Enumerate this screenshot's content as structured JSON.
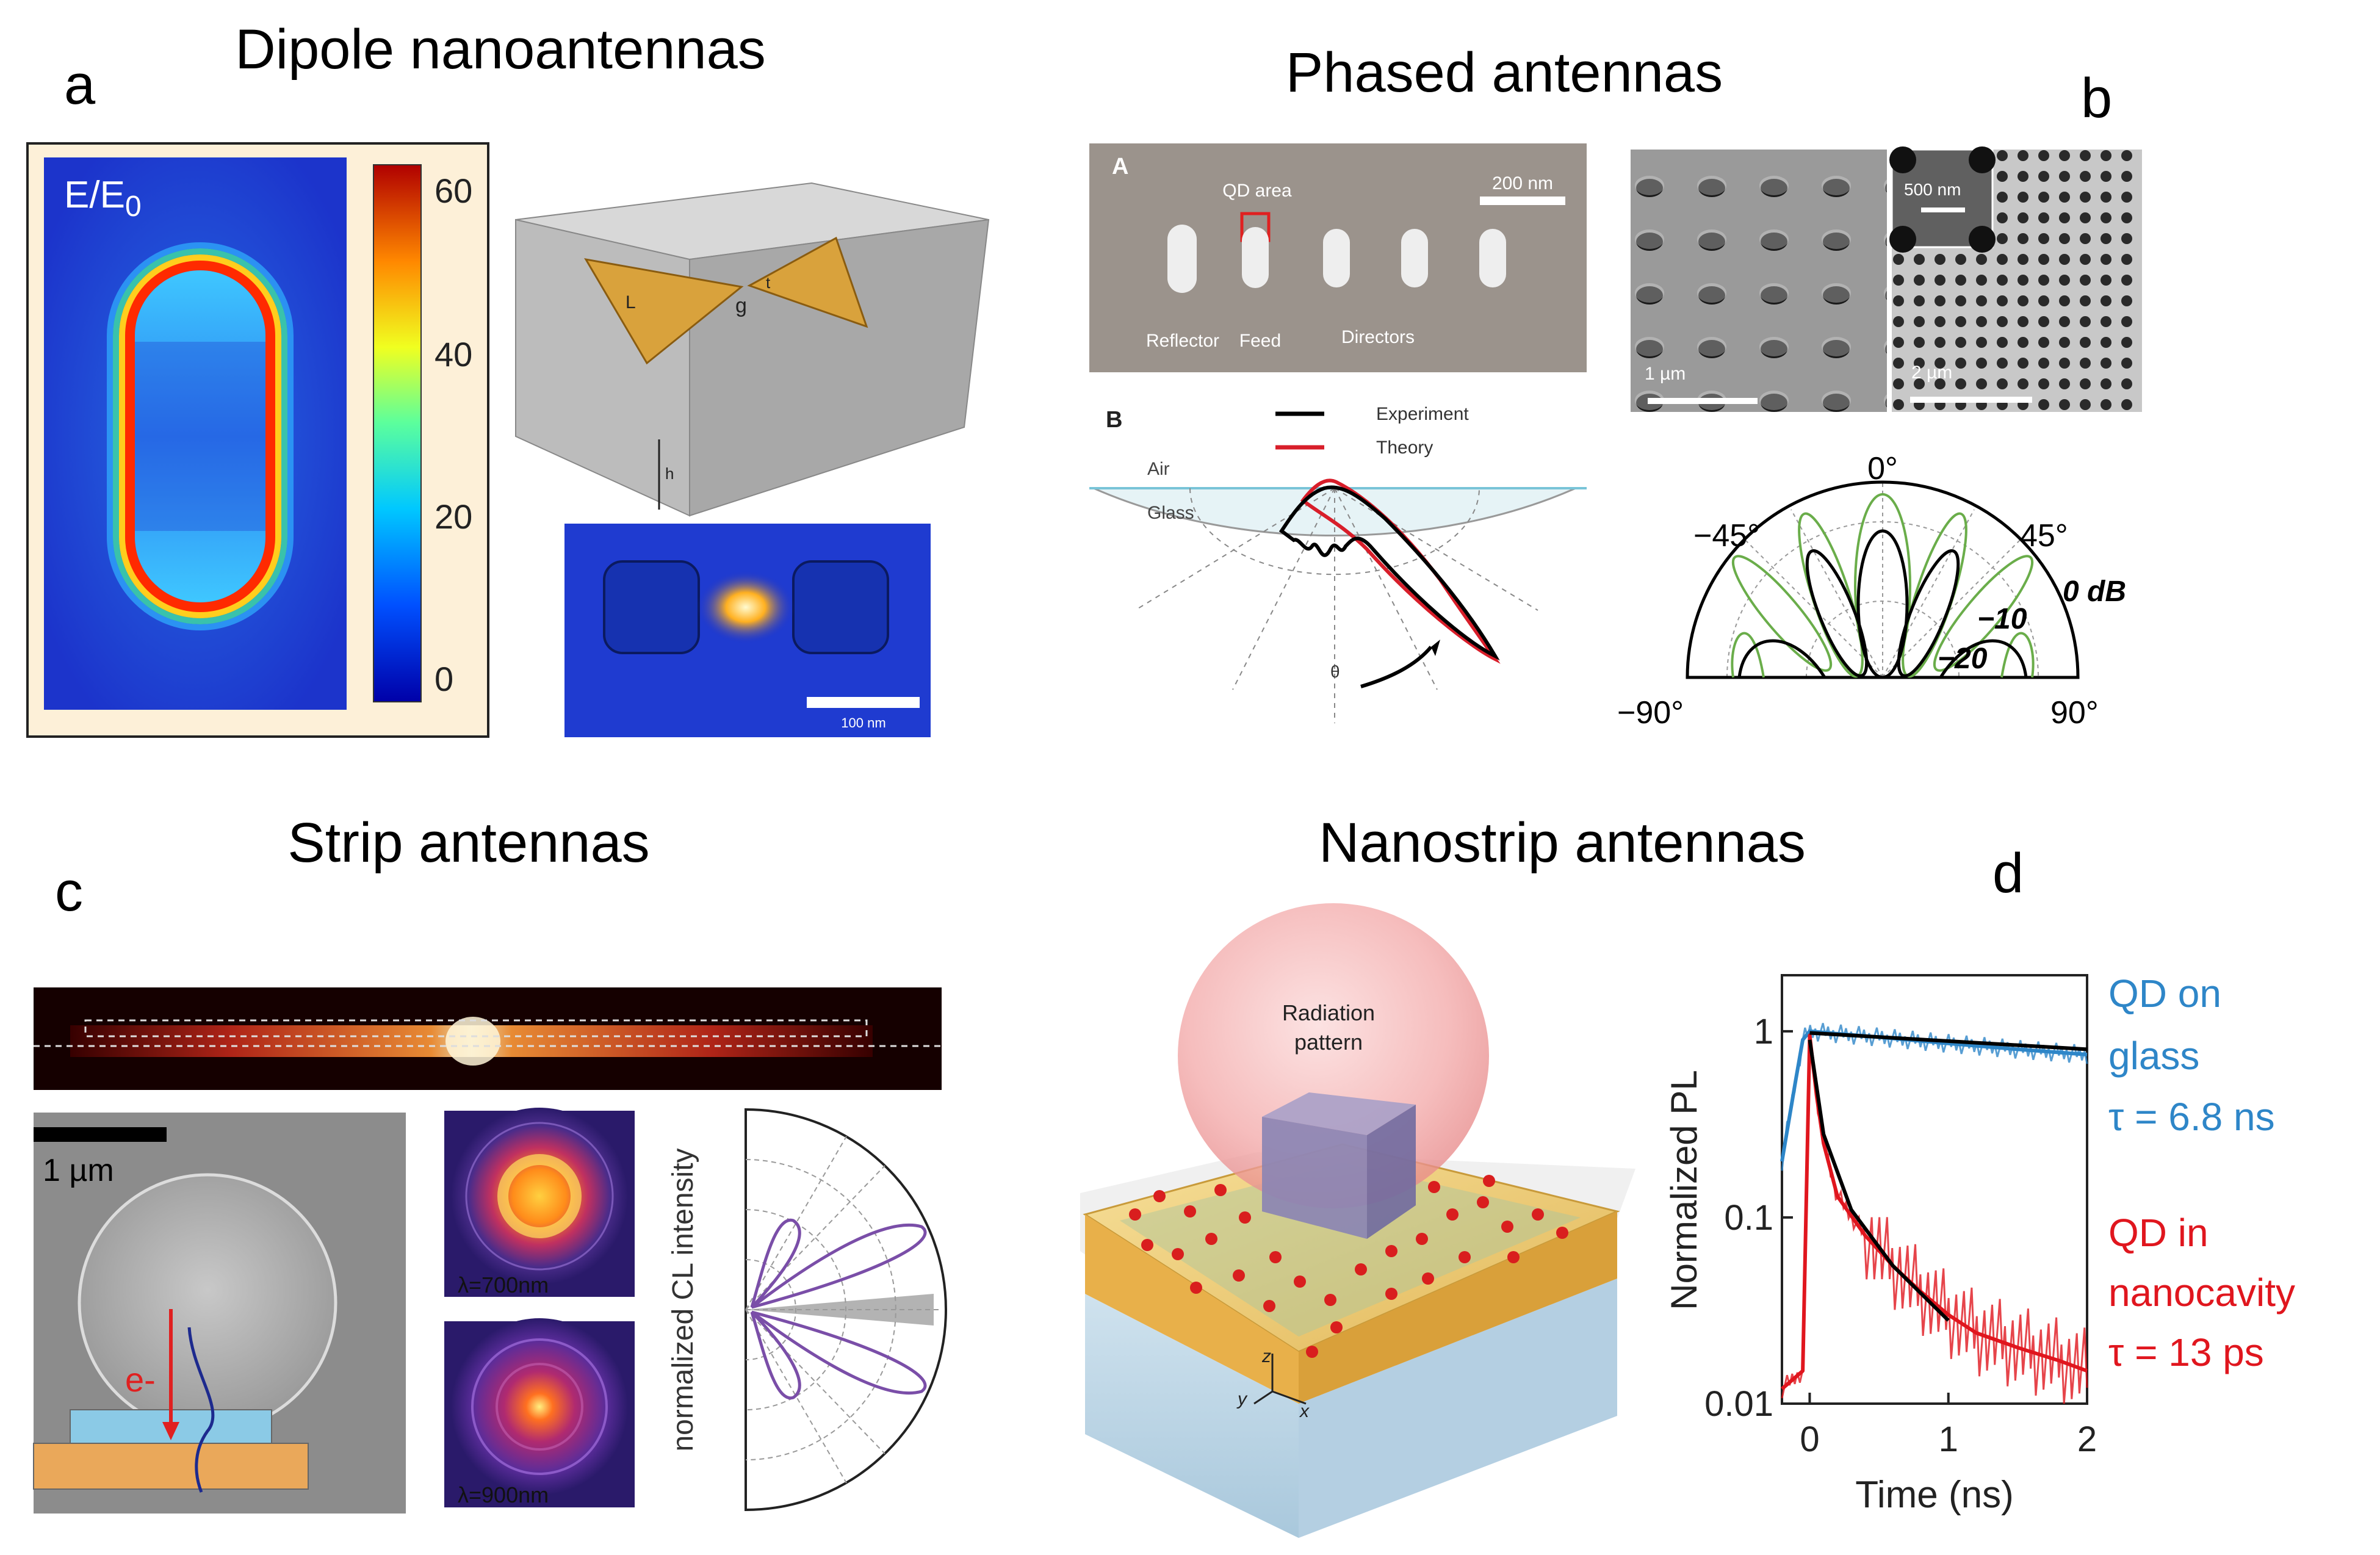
{
  "panels": {
    "a": {
      "letter": "a",
      "title": "Dipole nanoantennas",
      "field_label": "E/E",
      "field_label_sub": "0",
      "colorbar_ticks": [
        "60",
        "40",
        "20",
        "0"
      ],
      "bowtie_labels": {
        "L": "L",
        "t": "t",
        "g": "g",
        "h": "h"
      },
      "scalebar_label": "100 nm"
    },
    "b": {
      "letter": "b",
      "title": "Phased antennas",
      "sem_panel_letter": "A",
      "qd_area": "QD area",
      "scale_200": "200 nm",
      "reflector": "Reflector",
      "feed": "Feed",
      "directors": "Directors",
      "polar_panel_letter": "B",
      "legend_experiment": "Experiment",
      "legend_theory": "Theory",
      "air": "Air",
      "glass": "Glass",
      "theta": "θ",
      "hole_scale_1": "1 µm",
      "hole_scale_2": "2 µm",
      "inset_scale": "500 nm",
      "polar_angles": {
        "top": "0°",
        "left45": "−45°",
        "right45": "45°",
        "left90": "−90°",
        "right90": "90°"
      },
      "db_labels": {
        "zero": "0 dB",
        "minus10": "−10",
        "minus20": "−20"
      }
    },
    "c": {
      "letter": "c",
      "title": "Strip antennas",
      "scale_label": "1 µm",
      "electron": "e-",
      "lambda_700": "λ=700nm",
      "lambda_900": "λ=900nm",
      "cl_axis": "normalized CL intensity"
    },
    "d": {
      "letter": "d",
      "title": "Nanostrip antennas",
      "radiation_line1": "Radiation",
      "radiation_line2": "pattern",
      "axes": {
        "z": "z",
        "y": "y",
        "x": "x"
      },
      "legend_glass_1": "QD on",
      "legend_glass_2": "glass",
      "legend_glass_tau": "τ = 6.8 ns",
      "legend_cavity_1": "QD in",
      "legend_cavity_2": "nanocavity",
      "legend_cavity_tau": "τ = 13 ps"
    }
  },
  "colors": {
    "field_blue": "#1f3bd0",
    "gold": "#e8b04a",
    "glass_series": "#2e86c8",
    "cavity_series": "#e0161e",
    "experiment": "#000000",
    "theory": "#d81e2a"
  },
  "chart_data": {
    "type": "line",
    "title": "",
    "xlabel": "Time (ns)",
    "ylabel": "Normalized PL",
    "yscale": "log",
    "xlim": [
      -0.2,
      2
    ],
    "ylim": [
      0.01,
      2
    ],
    "x_ticks": [
      "0",
      "1",
      "2"
    ],
    "y_ticks": [
      "0.01",
      "0.1",
      "1"
    ],
    "series": [
      {
        "name": "QD on glass",
        "tau_ns": 6.8,
        "x": [
          -0.2,
          -0.1,
          -0.05,
          0.0,
          0.2,
          0.5,
          1.0,
          1.5,
          2.0
        ],
        "values": [
          0.2,
          0.55,
          0.9,
          1.0,
          0.97,
          0.93,
          0.86,
          0.8,
          0.75
        ]
      },
      {
        "name": "QD in nanocavity",
        "tau_ns": 0.013,
        "x": [
          -0.2,
          -0.05,
          0.0,
          0.05,
          0.1,
          0.2,
          0.4,
          0.6,
          0.8,
          1.0,
          1.2,
          1.5,
          1.8,
          2.0
        ],
        "values": [
          0.012,
          0.015,
          0.95,
          0.45,
          0.25,
          0.13,
          0.08,
          0.055,
          0.04,
          0.03,
          0.024,
          0.02,
          0.017,
          0.015
        ]
      }
    ],
    "fits": [
      {
        "name": "fit glass",
        "x": [
          0.0,
          2.0
        ],
        "values": [
          0.98,
          0.8
        ]
      },
      {
        "name": "fit cavity",
        "x": [
          0.0,
          0.1,
          0.3,
          0.6,
          1.0
        ],
        "values": [
          0.9,
          0.28,
          0.11,
          0.055,
          0.028
        ]
      }
    ]
  }
}
